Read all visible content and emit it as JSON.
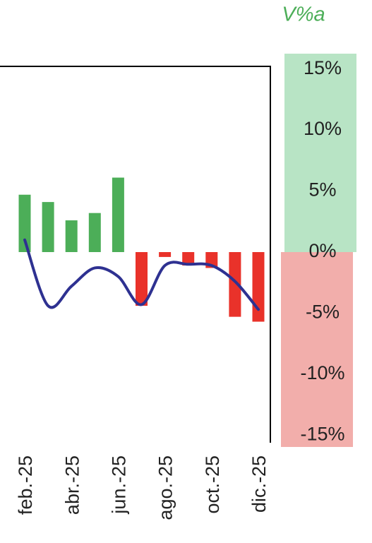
{
  "chart_data": {
    "type": "bar_line",
    "title": "V%a",
    "categories": [
      "feb.-25",
      null,
      "abr.-25",
      null,
      "jun.-25",
      null,
      "ago.-25",
      null,
      "oct.-25",
      null,
      "dic.-25"
    ],
    "series": [
      {
        "type": "bar",
        "values": [
          4.7,
          4.1,
          2.6,
          3.2,
          6.1,
          -4.4,
          -0.4,
          -1.1,
          -1.3,
          -5.3,
          -5.7
        ],
        "positive_color": "#4cae58",
        "negative_color": "#e9322a"
      },
      {
        "type": "line",
        "values": [
          1.0,
          -4.4,
          -2.8,
          -1.3,
          -2.0,
          -4.3,
          -1.1,
          -1.0,
          -1.1,
          -2.4,
          -4.7
        ],
        "color": "#2e3191"
      }
    ],
    "ylim": [
      -15.5,
      15.5
    ],
    "yticks": [
      {
        "value": 15,
        "label": "15%"
      },
      {
        "value": 10,
        "label": "10%"
      },
      {
        "value": 5,
        "label": "5%"
      },
      {
        "value": 0,
        "label": "0%"
      },
      {
        "value": -5,
        "label": "-5%"
      },
      {
        "value": -10,
        "label": "-10%"
      },
      {
        "value": -15,
        "label": "-15%"
      }
    ],
    "y_axis_side": "right"
  }
}
